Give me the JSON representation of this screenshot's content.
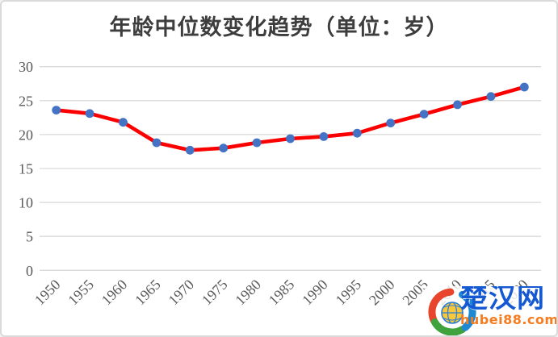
{
  "chart_data": {
    "type": "line",
    "title": "年龄中位数变化趋势（单位：岁）",
    "categories": [
      "1950",
      "1955",
      "1960",
      "1965",
      "1970",
      "1975",
      "1980",
      "1985",
      "1990",
      "1995",
      "2000",
      "2005",
      "2010",
      "2015",
      "2020"
    ],
    "series": [
      {
        "name": "年龄中位数",
        "values": [
          23.6,
          23.1,
          21.8,
          18.8,
          17.7,
          18.0,
          18.8,
          19.4,
          19.7,
          20.2,
          21.7,
          23.0,
          24.4,
          25.6,
          27.0
        ],
        "line_color": "#fc0000",
        "marker_color": "#4472c4",
        "marker": "circle"
      }
    ],
    "xlabel": "",
    "ylabel": "",
    "ylim": [
      0,
      30
    ],
    "yticks": [
      0,
      5,
      10,
      15,
      20,
      25,
      30
    ],
    "x_tick_rotation": -45,
    "grid": true,
    "gridline_color": "#d9d9d9",
    "tick_label_color": "#595959",
    "legend_position": "none",
    "background_color": "#ffffff",
    "frame_border_color": "#dadada"
  },
  "watermark": {
    "site_name": "楚汉网",
    "site_url": "hubei88.com",
    "name_color": "#1459d2",
    "url_color": "#f57d20",
    "logo": "globe-swirl",
    "logo_colors": {
      "red": "#e8452c",
      "green": "#3fa23c",
      "blue": "#1e88d2",
      "globe_fill": "#f8c83c",
      "globe_lines": "#2c7fd6"
    }
  }
}
